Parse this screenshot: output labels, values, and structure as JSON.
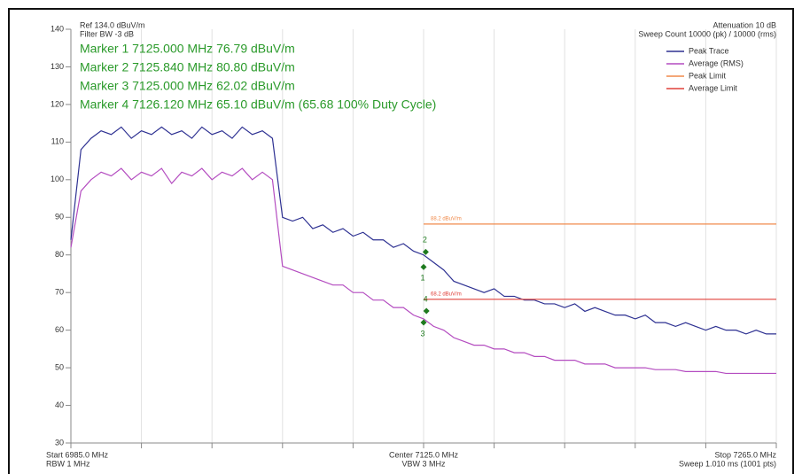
{
  "chart_data": {
    "type": "line",
    "header_left": [
      "Ref 134.0 dBuV/m",
      "Filter BW -3 dB"
    ],
    "header_right": [
      "Attenuation 10 dB",
      "Sweep Count 10000 (pk) / 10000 (rms)"
    ],
    "xlim": [
      6985,
      7265
    ],
    "xticks": [
      6985,
      7013,
      7041,
      7069,
      7097,
      7125,
      7153,
      7181,
      7209,
      7237,
      7265
    ],
    "x_labels": [
      {
        "x": 6985,
        "lines": [
          "Start 6985.0 MHz",
          "RBW 1 MHz"
        ]
      },
      {
        "x": 7125,
        "lines": [
          "Center 7125.0 MHz",
          "VBW 3 MHz"
        ]
      },
      {
        "x": 7265,
        "lines": [
          "Stop 7265.0 MHz",
          "Sweep 1.010 ms (1001 pts)"
        ]
      }
    ],
    "ylim": [
      30,
      140
    ],
    "yticks": [
      30,
      40,
      50,
      60,
      70,
      80,
      90,
      100,
      110,
      120,
      130,
      140
    ],
    "grid": "x",
    "legend": "top-right",
    "series": [
      {
        "name": "Peak Trace",
        "color": "#2e3192",
        "x": [
          6985,
          6989,
          6993,
          6997,
          7001,
          7005,
          7009,
          7013,
          7017,
          7021,
          7025,
          7029,
          7033,
          7037,
          7041,
          7045,
          7049,
          7053,
          7057,
          7061,
          7065,
          7069,
          7073,
          7077,
          7081,
          7085,
          7089,
          7093,
          7097,
          7101,
          7105,
          7109,
          7113,
          7117,
          7121,
          7125,
          7129,
          7133,
          7137,
          7141,
          7145,
          7149,
          7153,
          7157,
          7161,
          7165,
          7169,
          7173,
          7177,
          7181,
          7185,
          7189,
          7193,
          7197,
          7201,
          7205,
          7209,
          7213,
          7217,
          7221,
          7225,
          7229,
          7233,
          7237,
          7241,
          7245,
          7249,
          7253,
          7257,
          7261,
          7265
        ],
        "values": [
          84,
          108,
          111,
          113,
          112,
          114,
          111,
          113,
          112,
          114,
          112,
          113,
          111,
          114,
          112,
          113,
          111,
          114,
          112,
          113,
          111,
          90,
          89,
          90,
          87,
          88,
          86,
          87,
          85,
          86,
          84,
          84,
          82,
          83,
          81,
          80,
          78,
          76,
          73,
          72,
          71,
          70,
          71,
          69,
          69,
          68,
          68,
          67,
          67,
          66,
          67,
          65,
          66,
          65,
          64,
          64,
          63,
          64,
          62,
          62,
          61,
          62,
          61,
          60,
          61,
          60,
          60,
          59,
          60,
          59,
          59
        ]
      },
      {
        "name": "Average (RMS)",
        "color": "#b44cc0",
        "x": [
          6985,
          6989,
          6993,
          6997,
          7001,
          7005,
          7009,
          7013,
          7017,
          7021,
          7025,
          7029,
          7033,
          7037,
          7041,
          7045,
          7049,
          7053,
          7057,
          7061,
          7065,
          7069,
          7073,
          7077,
          7081,
          7085,
          7089,
          7093,
          7097,
          7101,
          7105,
          7109,
          7113,
          7117,
          7121,
          7125,
          7129,
          7133,
          7137,
          7141,
          7145,
          7149,
          7153,
          7157,
          7161,
          7165,
          7169,
          7173,
          7177,
          7181,
          7185,
          7189,
          7193,
          7197,
          7201,
          7205,
          7209,
          7213,
          7217,
          7221,
          7225,
          7229,
          7233,
          7237,
          7241,
          7245,
          7249,
          7253,
          7257,
          7261,
          7265
        ],
        "values": [
          82,
          97,
          100,
          102,
          101,
          103,
          100,
          102,
          101,
          103,
          99,
          102,
          101,
          103,
          100,
          102,
          101,
          103,
          100,
          102,
          100,
          77,
          76,
          75,
          74,
          73,
          72,
          72,
          70,
          70,
          68,
          68,
          66,
          66,
          64,
          63,
          61,
          60,
          58,
          57,
          56,
          56,
          55,
          55,
          54,
          54,
          53,
          53,
          52,
          52,
          52,
          51,
          51,
          51,
          50,
          50,
          50,
          50,
          49.5,
          49.5,
          49.5,
          49,
          49,
          49,
          49,
          48.5,
          48.5,
          48.5,
          48.5,
          48.5,
          48.5
        ]
      },
      {
        "name": "Peak Limit",
        "color": "#f08a4b",
        "label": "88.2 dBuV/m",
        "x": [
          7125,
          7265
        ],
        "values": [
          88.2,
          88.2
        ]
      },
      {
        "name": "Average Limit",
        "color": "#e0403a",
        "label": "68.2 dBuV/m",
        "x": [
          7125,
          7265
        ],
        "values": [
          68.2,
          68.2
        ]
      }
    ],
    "marker_color": "#1e7a1e",
    "markers": [
      {
        "label": "1",
        "x": 7125.0,
        "value": 76.79,
        "text": "Marker 1 7125.000 MHz 76.79 dBuV/m"
      },
      {
        "label": "2",
        "x": 7125.84,
        "value": 80.8,
        "text": "Marker 2 7125.840 MHz 80.80 dBuV/m"
      },
      {
        "label": "3",
        "x": 7125.0,
        "value": 62.02,
        "text": "Marker 3 7125.000 MHz 62.02 dBuV/m"
      },
      {
        "label": "4",
        "x": 7126.12,
        "value": 65.1,
        "text": "Marker 4 7126.120 MHz 65.10 dBuV/m (65.68 100% Duty Cycle)"
      }
    ]
  }
}
